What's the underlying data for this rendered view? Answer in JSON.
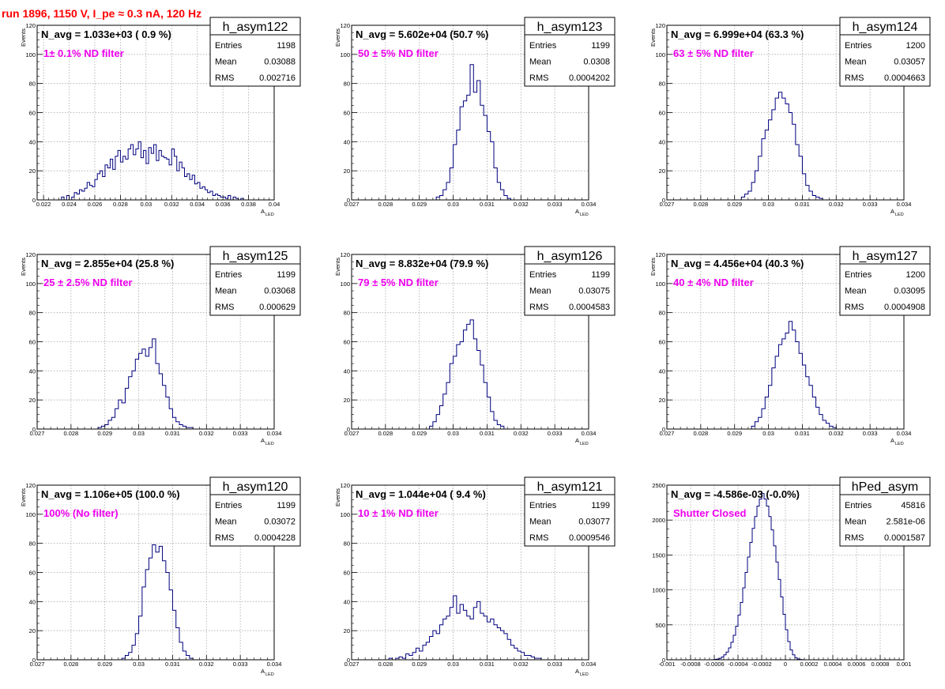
{
  "header": {
    "run_info": "run 1896,  1150 V, I_pe ≈ 0.3 nA, 120 Hz"
  },
  "colors": {
    "header": "#ff0000",
    "annotation": "#ee00ee",
    "histogram": "#00007f",
    "grid": "#aaaaaa"
  },
  "chart_data": [
    {
      "type": "histogram",
      "stats_title": "h_asym122",
      "n_avg_label": "N_avg = 1.033e+03 ( 0.9 %)",
      "filter_label": "1± 0.1% ND filter",
      "stats": [
        [
          "Entries",
          "1198"
        ],
        [
          "Mean",
          "0.03088"
        ],
        [
          "RMS",
          "0.002716"
        ]
      ],
      "xlabel": "A",
      "xlabel_sub": "LED",
      "ylabel": "Events",
      "xlim": [
        0.0215,
        0.04
      ],
      "ylim": [
        0,
        120
      ],
      "xticks": [
        0.022,
        0.024,
        0.026,
        0.028,
        0.03,
        0.032,
        0.034,
        0.036,
        0.038,
        0.04
      ],
      "xtick_labels": [
        "0.022",
        "0.024",
        "0.026",
        "0.028",
        "0.03",
        "0.032",
        "0.034",
        "0.036",
        "0.038",
        "0.04"
      ],
      "yticks": [
        0,
        20,
        40,
        60,
        80,
        100,
        120
      ],
      "ytick_labels": [
        "0",
        "20",
        "40",
        "60",
        "80",
        "100",
        "120"
      ],
      "bin_start": 0.0234,
      "bin_width": 0.0002,
      "counts": [
        2,
        0,
        3,
        0,
        2,
        5,
        4,
        7,
        6,
        8,
        12,
        10,
        9,
        14,
        18,
        20,
        16,
        24,
        22,
        28,
        21,
        30,
        34,
        26,
        30,
        28,
        35,
        38,
        31,
        35,
        40,
        29,
        34,
        25,
        36,
        32,
        38,
        27,
        34,
        30,
        29,
        28,
        24,
        35,
        30,
        20,
        26,
        22,
        16,
        18,
        14,
        17,
        11,
        12,
        8,
        9,
        7,
        5,
        6,
        3,
        4,
        3,
        2,
        2,
        1,
        3,
        0,
        2,
        1,
        0,
        1
      ]
    },
    {
      "type": "histogram",
      "stats_title": "h_asym123",
      "n_avg_label": "N_avg = 5.602e+04 (50.7 %)",
      "filter_label": "50 ± 5% ND filter",
      "stats": [
        [
          "Entries",
          "1199"
        ],
        [
          "Mean",
          "0.0308"
        ],
        [
          "RMS",
          "0.0004202"
        ]
      ],
      "xlabel": "A",
      "xlabel_sub": "LED",
      "ylabel": "Events",
      "xlim": [
        0.027,
        0.034
      ],
      "ylim": [
        0,
        120
      ],
      "xticks": [
        0.027,
        0.028,
        0.029,
        0.03,
        0.031,
        0.032,
        0.033,
        0.034
      ],
      "xtick_labels": [
        "0.027",
        "0.028",
        "0.029",
        "0.03",
        "0.031",
        "0.032",
        "0.033",
        "0.034"
      ],
      "yticks": [
        0,
        20,
        40,
        60,
        80,
        100,
        120
      ],
      "ytick_labels": [
        "0",
        "20",
        "40",
        "60",
        "80",
        "100",
        "120"
      ],
      "bin_start": 0.0295,
      "bin_width": 0.0001,
      "counts": [
        2,
        3,
        7,
        12,
        22,
        38,
        48,
        64,
        68,
        72,
        93,
        74,
        82,
        65,
        58,
        47,
        40,
        22,
        12,
        7,
        3,
        1
      ]
    },
    {
      "type": "histogram",
      "stats_title": "h_asym124",
      "n_avg_label": "N_avg = 6.999e+04 (63.3 %)",
      "filter_label": "63 ± 5% ND filter",
      "stats": [
        [
          "Entries",
          "1200"
        ],
        [
          "Mean",
          "0.03057"
        ],
        [
          "RMS",
          "0.0004663"
        ]
      ],
      "xlabel": "A",
      "xlabel_sub": "LED",
      "ylabel": "Events",
      "xlim": [
        0.027,
        0.034
      ],
      "ylim": [
        0,
        120
      ],
      "xticks": [
        0.027,
        0.028,
        0.029,
        0.03,
        0.031,
        0.032,
        0.033,
        0.034
      ],
      "xtick_labels": [
        "0.027",
        "0.028",
        "0.029",
        "0.03",
        "0.031",
        "0.032",
        "0.033",
        "0.034"
      ],
      "yticks": [
        0,
        20,
        40,
        60,
        80,
        100,
        120
      ],
      "ytick_labels": [
        "0",
        "20",
        "40",
        "60",
        "80",
        "100",
        "120"
      ],
      "bin_start": 0.0292,
      "bin_width": 0.0001,
      "counts": [
        2,
        4,
        6,
        12,
        20,
        30,
        42,
        48,
        55,
        62,
        70,
        74,
        70,
        66,
        60,
        52,
        38,
        30,
        18,
        10,
        6,
        3,
        2,
        1
      ]
    },
    {
      "type": "histogram",
      "stats_title": "h_asym125",
      "n_avg_label": "N_avg = 2.855e+04 (25.8 %)",
      "filter_label": "25 ± 2.5% ND filter",
      "stats": [
        [
          "Entries",
          "1199"
        ],
        [
          "Mean",
          "0.03068"
        ],
        [
          "RMS",
          "0.000629"
        ]
      ],
      "xlabel": "A",
      "xlabel_sub": "LED",
      "ylabel": "Events",
      "xlim": [
        0.027,
        0.034
      ],
      "ylim": [
        0,
        120
      ],
      "xticks": [
        0.027,
        0.028,
        0.029,
        0.03,
        0.031,
        0.032,
        0.033,
        0.034
      ],
      "xtick_labels": [
        "0.027",
        "0.028",
        "0.029",
        "0.03",
        "0.031",
        "0.032",
        "0.033",
        "0.034"
      ],
      "yticks": [
        0,
        20,
        40,
        60,
        80,
        100,
        120
      ],
      "ytick_labels": [
        "0",
        "20",
        "40",
        "60",
        "80",
        "100",
        "120"
      ],
      "bin_start": 0.0288,
      "bin_width": 0.0001,
      "counts": [
        1,
        2,
        3,
        6,
        8,
        14,
        20,
        18,
        28,
        36,
        40,
        48,
        52,
        55,
        50,
        56,
        62,
        45,
        38,
        30,
        22,
        14,
        8,
        5,
        3,
        2,
        1,
        1
      ]
    },
    {
      "type": "histogram",
      "stats_title": "h_asym126",
      "n_avg_label": "N_avg = 8.832e+04 (79.9 %)",
      "filter_label": "79 ± 5% ND filter",
      "stats": [
        [
          "Entries",
          "1199"
        ],
        [
          "Mean",
          "0.03075"
        ],
        [
          "RMS",
          "0.0004583"
        ]
      ],
      "xlabel": "A",
      "xlabel_sub": "LED",
      "ylabel": "Events",
      "xlim": [
        0.027,
        0.034
      ],
      "ylim": [
        0,
        120
      ],
      "xticks": [
        0.027,
        0.028,
        0.029,
        0.03,
        0.031,
        0.032,
        0.033,
        0.034
      ],
      "xtick_labels": [
        "0.027",
        "0.028",
        "0.029",
        "0.03",
        "0.031",
        "0.032",
        "0.033",
        "0.034"
      ],
      "yticks": [
        0,
        20,
        40,
        60,
        80,
        100,
        120
      ],
      "ytick_labels": [
        "0",
        "20",
        "40",
        "60",
        "80",
        "100",
        "120"
      ],
      "bin_start": 0.0293,
      "bin_width": 0.0001,
      "counts": [
        2,
        5,
        10,
        16,
        24,
        32,
        45,
        50,
        58,
        60,
        68,
        72,
        75,
        62,
        54,
        44,
        32,
        22,
        12,
        6,
        3,
        2
      ]
    },
    {
      "type": "histogram",
      "stats_title": "h_asym127",
      "n_avg_label": "N_avg = 4.456e+04 (40.3 %)",
      "filter_label": "40 ± 4% ND filter",
      "stats": [
        [
          "Entries",
          "1200"
        ],
        [
          "Mean",
          "0.03095"
        ],
        [
          "RMS",
          "0.0004908"
        ]
      ],
      "xlabel": "A",
      "xlabel_sub": "LED",
      "ylabel": "Events",
      "xlim": [
        0.027,
        0.034
      ],
      "ylim": [
        0,
        120
      ],
      "xticks": [
        0.027,
        0.028,
        0.029,
        0.03,
        0.031,
        0.032,
        0.033,
        0.034
      ],
      "xtick_labels": [
        "0.027",
        "0.028",
        "0.029",
        "0.03",
        "0.031",
        "0.032",
        "0.033",
        "0.034"
      ],
      "yticks": [
        0,
        20,
        40,
        60,
        80,
        100,
        120
      ],
      "ytick_labels": [
        "0",
        "20",
        "40",
        "60",
        "80",
        "100",
        "120"
      ],
      "bin_start": 0.0295,
      "bin_width": 0.0001,
      "counts": [
        2,
        5,
        8,
        14,
        22,
        30,
        42,
        50,
        58,
        62,
        66,
        74,
        68,
        60,
        52,
        44,
        36,
        30,
        22,
        15,
        10,
        6,
        4,
        2,
        1
      ]
    },
    {
      "type": "histogram",
      "stats_title": "h_asym120",
      "n_avg_label": "N_avg = 1.106e+05 (100.0 %)",
      "filter_label": "100% (No filter)",
      "stats": [
        [
          "Entries",
          "1199"
        ],
        [
          "Mean",
          "0.03072"
        ],
        [
          "RMS",
          "0.0004228"
        ]
      ],
      "xlabel": "A",
      "xlabel_sub": "LED",
      "ylabel": "Events",
      "xlim": [
        0.027,
        0.034
      ],
      "ylim": [
        0,
        120
      ],
      "xticks": [
        0.027,
        0.028,
        0.029,
        0.03,
        0.031,
        0.032,
        0.033,
        0.034
      ],
      "xtick_labels": [
        "0.027",
        "0.028",
        "0.029",
        "0.03",
        "0.031",
        "0.032",
        "0.033",
        "0.034"
      ],
      "yticks": [
        0,
        20,
        40,
        60,
        80,
        100,
        120
      ],
      "ytick_labels": [
        "0",
        "20",
        "40",
        "60",
        "80",
        "100",
        "120"
      ],
      "bin_start": 0.0295,
      "bin_width": 0.0001,
      "counts": [
        1,
        3,
        5,
        10,
        18,
        30,
        50,
        62,
        70,
        79,
        74,
        78,
        68,
        60,
        48,
        34,
        22,
        12,
        6,
        3,
        1
      ]
    },
    {
      "type": "histogram",
      "stats_title": "h_asym121",
      "n_avg_label": "N_avg = 1.044e+04 ( 9.4 %)",
      "filter_label": "10 ± 1% ND filter",
      "stats": [
        [
          "Entries",
          "1199"
        ],
        [
          "Mean",
          "0.03077"
        ],
        [
          "RMS",
          "0.0009546"
        ]
      ],
      "xlabel": "A",
      "xlabel_sub": "LED",
      "ylabel": "Events",
      "xlim": [
        0.027,
        0.034
      ],
      "ylim": [
        0,
        120
      ],
      "xticks": [
        0.027,
        0.028,
        0.029,
        0.03,
        0.031,
        0.032,
        0.033,
        0.034
      ],
      "xtick_labels": [
        "0.027",
        "0.028",
        "0.029",
        "0.03",
        "0.031",
        "0.032",
        "0.033",
        "0.034"
      ],
      "yticks": [
        0,
        20,
        40,
        60,
        80,
        100,
        120
      ],
      "ytick_labels": [
        "0",
        "20",
        "40",
        "60",
        "80",
        "100",
        "120"
      ],
      "bin_start": 0.0281,
      "bin_width": 0.0001,
      "counts": [
        1,
        0,
        1,
        2,
        1,
        4,
        3,
        5,
        8,
        6,
        10,
        12,
        16,
        20,
        18,
        24,
        28,
        30,
        36,
        44,
        32,
        38,
        34,
        30,
        28,
        36,
        40,
        32,
        30,
        26,
        28,
        24,
        22,
        20,
        18,
        14,
        10,
        8,
        6,
        5,
        3,
        3,
        2,
        1,
        1
      ]
    },
    {
      "type": "histogram",
      "stats_title": "hPed_asym",
      "n_avg_label": "N_avg = -4.586e-03 (-0.0%)",
      "filter_label": "Shutter Closed",
      "stats": [
        [
          "Entries",
          "45816"
        ],
        [
          "Mean",
          "2.581e-06"
        ],
        [
          "RMS",
          "0.0001587"
        ]
      ],
      "xlabel": "",
      "xlabel_sub": "",
      "ylabel": "",
      "xlim": [
        -0.001,
        0.001
      ],
      "ylim": [
        0,
        2500
      ],
      "xticks": [
        -0.001,
        -0.0008,
        -0.0006,
        -0.0004,
        -0.0002,
        0,
        0.0002,
        0.0004,
        0.0006,
        0.0008,
        0.001
      ],
      "xtick_labels": [
        "-0.001",
        "-0.0008",
        "-0.0006",
        "-0.0004",
        "-0.0002",
        "0",
        "0.0002",
        "0.0004",
        "0.0006",
        "0.0008",
        "0.001"
      ],
      "yticks": [
        0,
        500,
        1000,
        1500,
        2000,
        2500
      ],
      "ytick_labels": [
        "0",
        "500",
        "1000",
        "1500",
        "2000",
        "2500"
      ],
      "bin_start": -0.00062,
      "bin_width": 2e-05,
      "counts": [
        2,
        5,
        10,
        20,
        40,
        70,
        110,
        170,
        250,
        350,
        480,
        640,
        820,
        1030,
        1250,
        1470,
        1680,
        1880,
        2050,
        2200,
        2300,
        2380,
        2300,
        2200,
        2050,
        1860,
        1630,
        1400,
        1150,
        900,
        650,
        430,
        260,
        140,
        70,
        30,
        12,
        4,
        1
      ]
    }
  ]
}
